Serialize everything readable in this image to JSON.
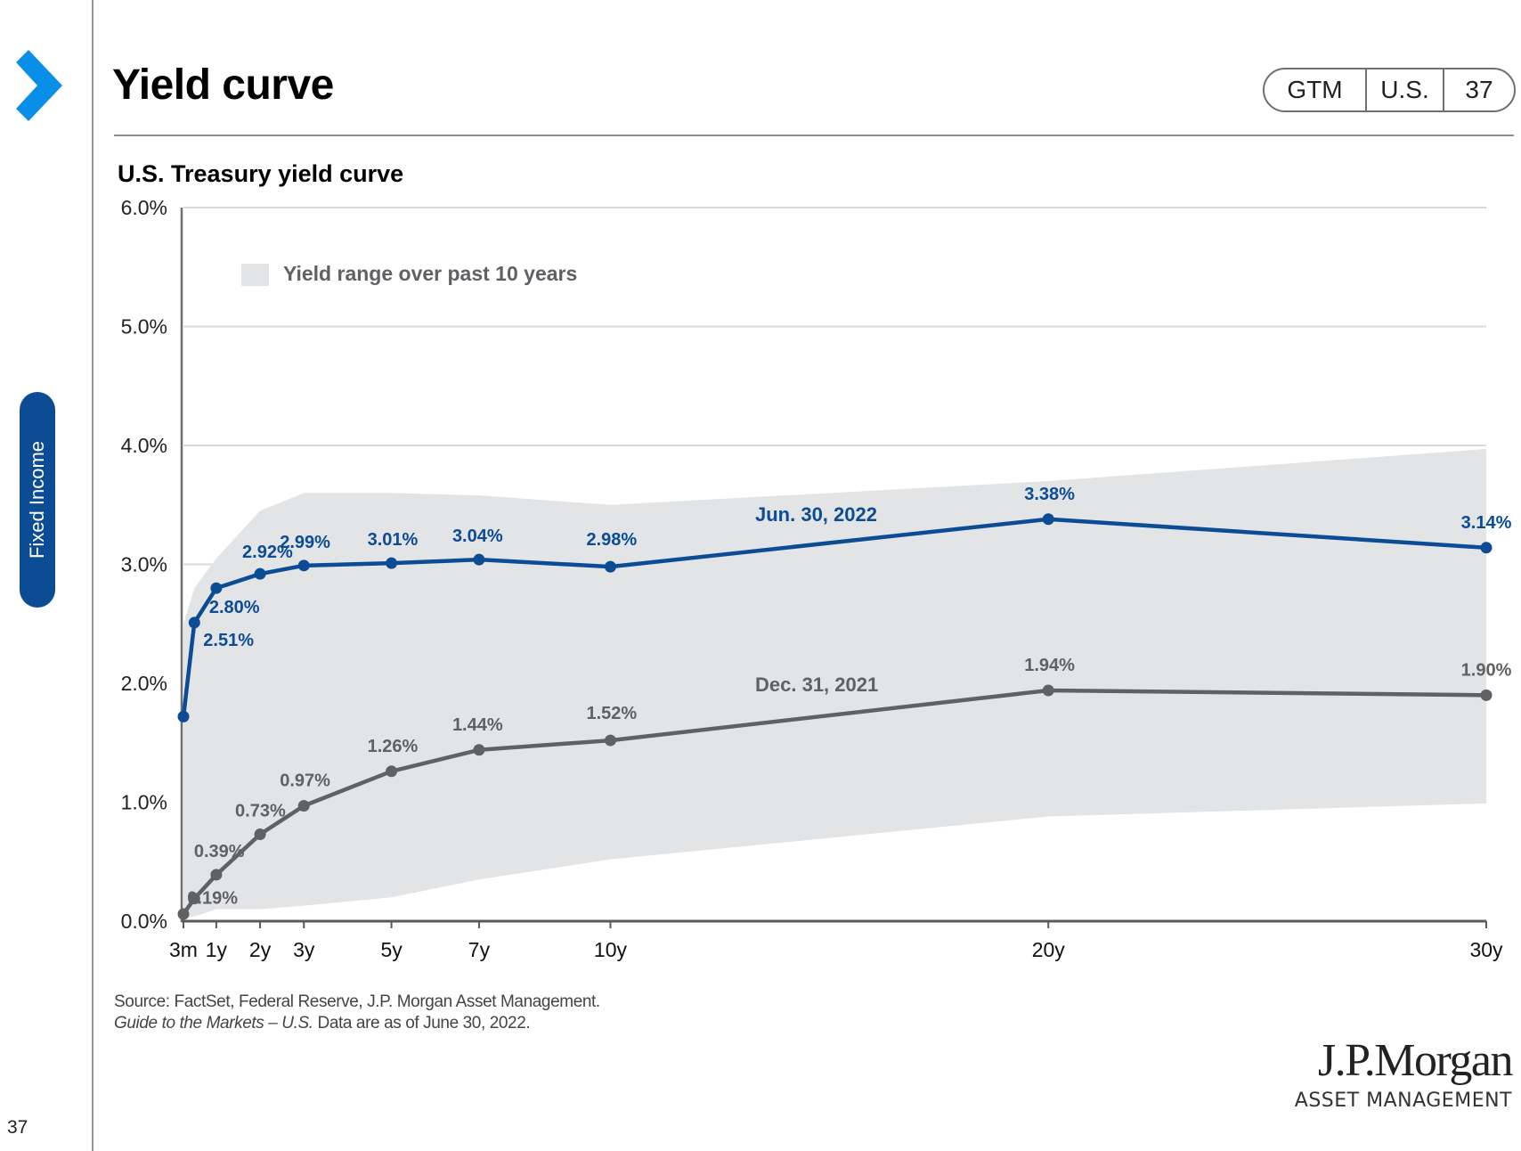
{
  "page": {
    "title": "Yield curve",
    "section": "Fixed Income",
    "page_number": "37",
    "tags": [
      "GTM",
      "U.S.",
      "37"
    ],
    "colors": {
      "accent_blue": "#0b4c95",
      "chevron_blue": "#0a8fe8",
      "series_gray": "#5f6165",
      "band_gray": "#e3e4e6"
    }
  },
  "chart_title": "U.S. Treasury yield curve",
  "source": {
    "line1": "Source: FactSet, Federal Reserve, J.P. Morgan Asset Management.",
    "line2_italic": "Guide to the Markets – U.S.",
    "line2_rest": " Data are as of June 30, 2022."
  },
  "logo": {
    "name": "J.P.Morgan",
    "subtitle": "ASSET MANAGEMENT"
  },
  "chart_data": {
    "type": "line",
    "title": "U.S. Treasury yield curve",
    "xlabel": "",
    "ylabel": "",
    "ylim": [
      0,
      6
    ],
    "yticks": [
      "0.0%",
      "1.0%",
      "2.0%",
      "3.0%",
      "4.0%",
      "5.0%",
      "6.0%"
    ],
    "ytick_values": [
      0,
      1,
      2,
      3,
      4,
      5,
      6
    ],
    "xlim": [
      0.25,
      30
    ],
    "xticks": [
      {
        "label": "3m",
        "years": 0.25
      },
      {
        "label": "1y",
        "years": 1
      },
      {
        "label": "2y",
        "years": 2
      },
      {
        "label": "3y",
        "years": 3
      },
      {
        "label": "5y",
        "years": 5
      },
      {
        "label": "7y",
        "years": 7
      },
      {
        "label": "10y",
        "years": 10
      },
      {
        "label": "20y",
        "years": 20
      },
      {
        "label": "30y",
        "years": 30
      }
    ],
    "grid": true,
    "legend": {
      "label": "Yield range over past 10 years",
      "placement": "top-left"
    },
    "x": [
      0.25,
      0.5,
      1,
      2,
      3,
      5,
      7,
      10,
      20,
      30
    ],
    "series": [
      {
        "name": "Jun. 30, 2022",
        "color": "#0b4c95",
        "values": [
          1.72,
          2.51,
          2.8,
          2.92,
          2.99,
          3.01,
          3.04,
          2.98,
          3.38,
          3.14
        ],
        "labels": [
          "",
          "2.51%",
          "2.80%",
          "2.92%",
          "2.99%",
          "3.01%",
          "3.04%",
          "2.98%",
          "3.38%",
          "3.14%"
        ]
      },
      {
        "name": "Dec. 31, 2021",
        "color": "#5f6165",
        "values": [
          0.06,
          0.19,
          0.39,
          0.73,
          0.97,
          1.26,
          1.44,
          1.52,
          1.94,
          1.9
        ],
        "labels": [
          "",
          "0.19%",
          "0.39%",
          "0.73%",
          "0.97%",
          "1.26%",
          "1.44%",
          "1.52%",
          "1.94%",
          "1.90%"
        ]
      }
    ],
    "range_band": {
      "name": "Yield range over past 10 years",
      "x": [
        0.25,
        0.5,
        1,
        2,
        3,
        5,
        7,
        10,
        20,
        30
      ],
      "high": [
        2.5,
        2.8,
        3.05,
        3.45,
        3.6,
        3.6,
        3.58,
        3.5,
        3.7,
        3.97
      ],
      "low": [
        0.02,
        0.04,
        0.1,
        0.1,
        0.13,
        0.2,
        0.35,
        0.52,
        0.88,
        0.99
      ]
    }
  }
}
